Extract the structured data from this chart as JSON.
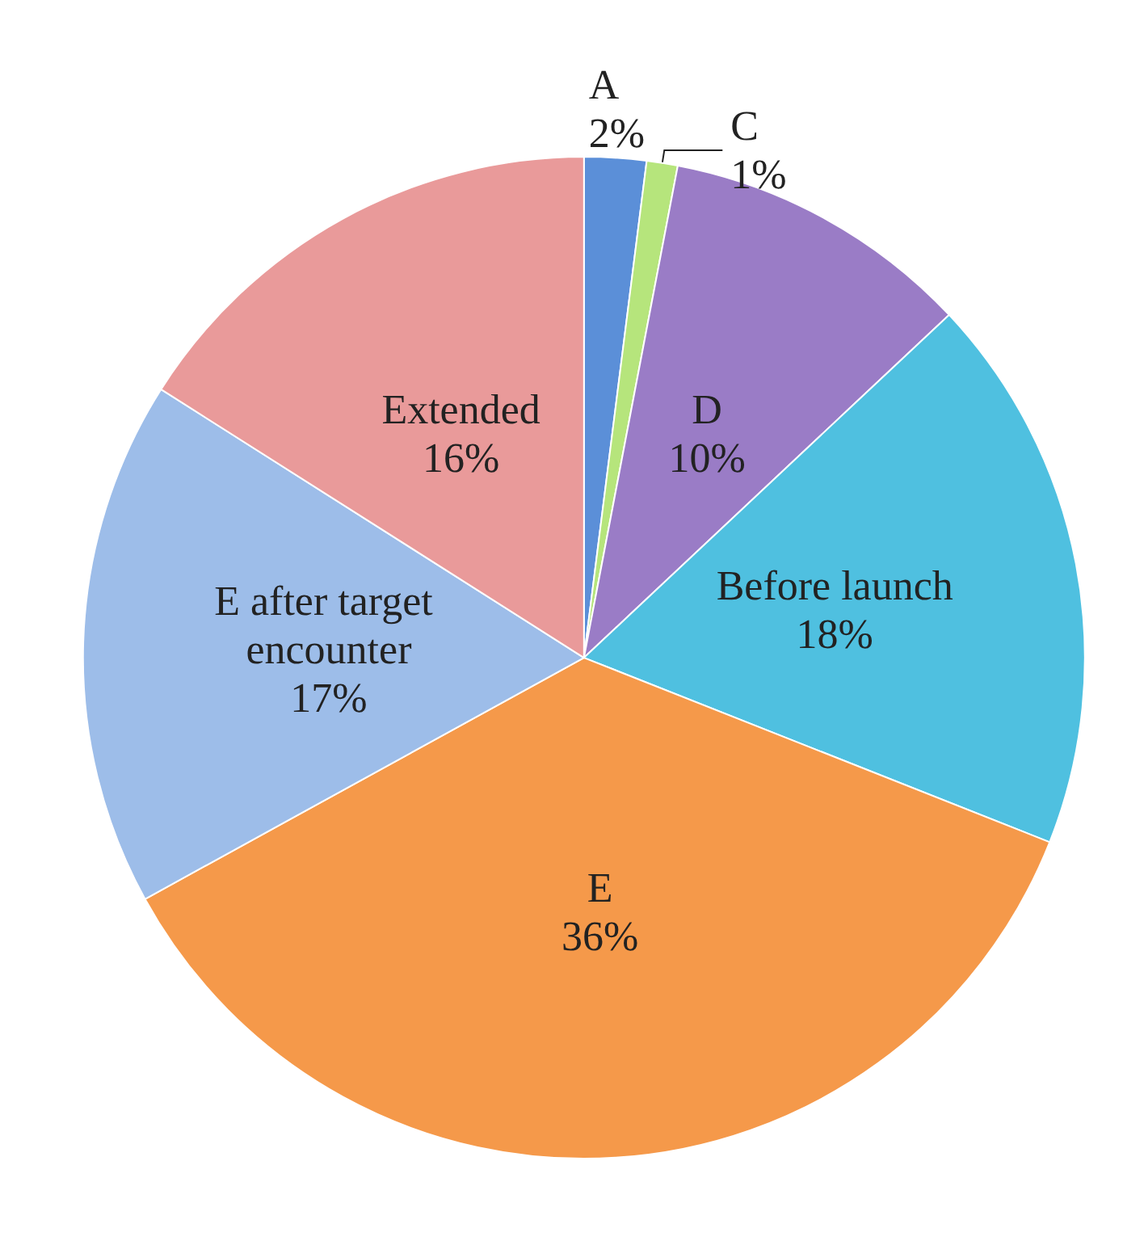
{
  "chart_data": {
    "type": "pie",
    "categories": [
      "A",
      "C",
      "D",
      "Before launch",
      "E",
      "E after target encounter",
      "Extended"
    ],
    "values": [
      2,
      1,
      10,
      18,
      36,
      17,
      16
    ],
    "value_labels": [
      "2%",
      "1%",
      "10%",
      "18%",
      "36%",
      "17%",
      "16%"
    ],
    "colors": [
      "#5b8fd8",
      "#b6e57c",
      "#9a7cc6",
      "#4fc0e0",
      "#f5994a",
      "#9dbde9",
      "#e99a9a"
    ],
    "legend": false
  }
}
